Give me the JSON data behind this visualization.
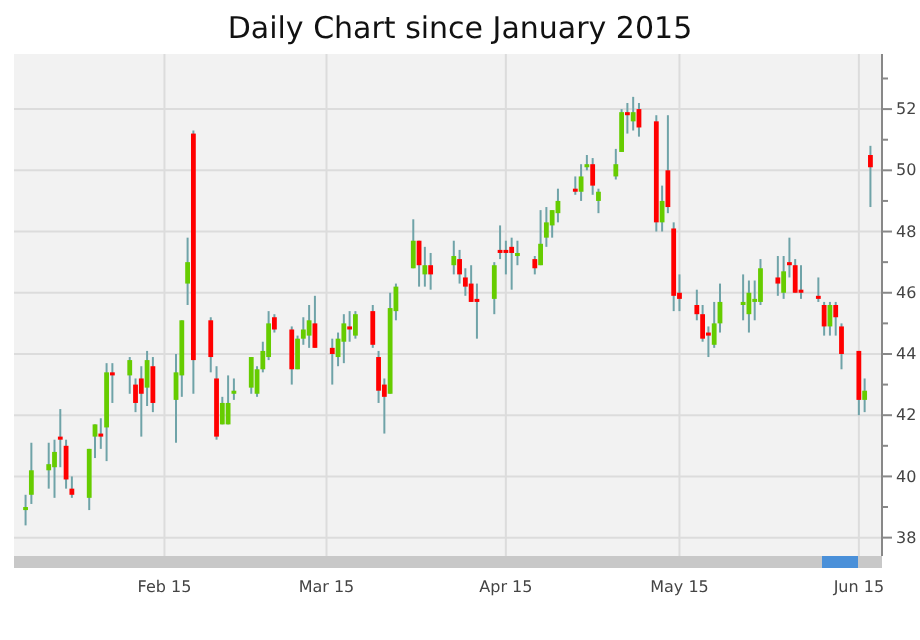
{
  "chart_data": {
    "type": "candlestick",
    "title": "Daily Chart since January 2015",
    "grid": true,
    "x": [
      "2015-01-22",
      "2015-01-23",
      "2015-01-26",
      "2015-01-27",
      "2015-01-28",
      "2015-01-29",
      "2015-01-30",
      "2015-02-02",
      "2015-02-03",
      "2015-02-04",
      "2015-02-05",
      "2015-02-06",
      "2015-02-09",
      "2015-02-10",
      "2015-02-11",
      "2015-02-12",
      "2015-02-13",
      "2015-02-17",
      "2015-02-18",
      "2015-02-19",
      "2015-02-20",
      "2015-02-23",
      "2015-02-24",
      "2015-02-25",
      "2015-02-26",
      "2015-02-27",
      "2015-03-02",
      "2015-03-03",
      "2015-03-04",
      "2015-03-05",
      "2015-03-06",
      "2015-03-09",
      "2015-03-10",
      "2015-03-11",
      "2015-03-12",
      "2015-03-13",
      "2015-03-16",
      "2015-03-17",
      "2015-03-18",
      "2015-03-19",
      "2015-03-20",
      "2015-03-23",
      "2015-03-24",
      "2015-03-25",
      "2015-03-26",
      "2015-03-27",
      "2015-03-30",
      "2015-03-31",
      "2015-04-01",
      "2015-04-02",
      "2015-04-06",
      "2015-04-07",
      "2015-04-08",
      "2015-04-09",
      "2015-04-10",
      "2015-04-13",
      "2015-04-14",
      "2015-04-15",
      "2015-04-16",
      "2015-04-17",
      "2015-04-20",
      "2015-04-21",
      "2015-04-22",
      "2015-04-23",
      "2015-04-24",
      "2015-04-27",
      "2015-04-28",
      "2015-04-29",
      "2015-04-30",
      "2015-05-01",
      "2015-05-04",
      "2015-05-05",
      "2015-05-06",
      "2015-05-07",
      "2015-05-08",
      "2015-05-11",
      "2015-05-12",
      "2015-05-13",
      "2015-05-14",
      "2015-05-15",
      "2015-05-18",
      "2015-05-19",
      "2015-05-20",
      "2015-05-21",
      "2015-05-22",
      "2015-05-26",
      "2015-05-27",
      "2015-05-28",
      "2015-05-29",
      "2015-06-01",
      "2015-06-02",
      "2015-06-03",
      "2015-06-04",
      "2015-06-05",
      "2015-06-08",
      "2015-06-09",
      "2015-06-10",
      "2015-06-11",
      "2015-06-12",
      "2015-06-15",
      "2015-06-16",
      "2015-06-17"
    ],
    "ohlc": [
      [
        38.9,
        39.4,
        38.4,
        39.0
      ],
      [
        39.4,
        41.1,
        39.1,
        40.2
      ],
      [
        40.2,
        41.1,
        39.6,
        40.4
      ],
      [
        40.3,
        41.2,
        39.3,
        40.8
      ],
      [
        41.3,
        42.2,
        40.3,
        41.2
      ],
      [
        41.0,
        41.2,
        39.6,
        39.9
      ],
      [
        39.6,
        40.0,
        39.3,
        39.4
      ],
      [
        39.3,
        40.9,
        38.9,
        40.9
      ],
      [
        41.3,
        41.7,
        40.6,
        41.7
      ],
      [
        41.4,
        41.9,
        40.9,
        41.3
      ],
      [
        41.6,
        43.7,
        40.5,
        43.4
      ],
      [
        43.4,
        43.7,
        42.4,
        43.3
      ],
      [
        43.3,
        43.9,
        42.7,
        43.8
      ],
      [
        43.0,
        43.2,
        42.1,
        42.4
      ],
      [
        43.2,
        43.6,
        41.3,
        42.7
      ],
      [
        42.9,
        44.1,
        42.3,
        43.8
      ],
      [
        43.6,
        43.9,
        42.1,
        42.4
      ],
      [
        42.5,
        44.0,
        41.1,
        43.4
      ],
      [
        43.3,
        45.1,
        42.6,
        45.1
      ],
      [
        46.3,
        47.8,
        45.6,
        47.0
      ],
      [
        51.2,
        51.3,
        42.7,
        43.8
      ],
      [
        45.1,
        45.2,
        43.4,
        43.9
      ],
      [
        43.2,
        43.6,
        41.2,
        41.3
      ],
      [
        41.7,
        42.6,
        41.7,
        42.4
      ],
      [
        41.7,
        43.3,
        41.7,
        42.4
      ],
      [
        42.7,
        43.2,
        42.5,
        42.8
      ],
      [
        42.9,
        43.9,
        42.7,
        43.9
      ],
      [
        42.7,
        43.6,
        42.6,
        43.5
      ],
      [
        43.5,
        44.4,
        43.4,
        44.1
      ],
      [
        43.9,
        45.4,
        43.8,
        45.0
      ],
      [
        45.2,
        45.3,
        44.7,
        44.8
      ],
      [
        44.8,
        44.9,
        43.0,
        43.5
      ],
      [
        43.5,
        44.6,
        43.5,
        44.5
      ],
      [
        44.5,
        45.2,
        44.3,
        44.8
      ],
      [
        44.6,
        45.6,
        44.2,
        45.1
      ],
      [
        45.0,
        45.9,
        44.2,
        44.2
      ],
      [
        44.2,
        44.5,
        43.0,
        44.0
      ],
      [
        43.9,
        44.7,
        43.6,
        44.5
      ],
      [
        44.4,
        45.3,
        43.7,
        45.0
      ],
      [
        44.9,
        45.4,
        44.4,
        44.8
      ],
      [
        44.6,
        45.4,
        44.5,
        45.3
      ],
      [
        45.4,
        45.6,
        44.2,
        44.3
      ],
      [
        43.9,
        44.1,
        42.4,
        42.8
      ],
      [
        43.0,
        43.2,
        41.4,
        42.6
      ],
      [
        42.7,
        46.0,
        42.7,
        45.5
      ],
      [
        45.4,
        46.3,
        45.1,
        46.2
      ],
      [
        46.8,
        48.4,
        46.8,
        47.7
      ],
      [
        47.7,
        47.7,
        46.2,
        46.9
      ],
      [
        46.6,
        47.5,
        46.2,
        46.9
      ],
      [
        46.9,
        47.3,
        46.1,
        46.6
      ],
      [
        46.9,
        47.7,
        46.6,
        47.2
      ],
      [
        47.1,
        47.4,
        46.3,
        46.6
      ],
      [
        46.5,
        46.8,
        45.9,
        46.2
      ],
      [
        46.3,
        46.9,
        45.7,
        45.7
      ],
      [
        45.8,
        46.3,
        44.5,
        45.7
      ],
      [
        45.8,
        47.0,
        45.3,
        46.9
      ],
      [
        47.4,
        48.2,
        47.1,
        47.3
      ],
      [
        47.4,
        47.7,
        46.6,
        47.3
      ],
      [
        47.5,
        47.8,
        46.1,
        47.3
      ],
      [
        47.2,
        47.7,
        46.9,
        47.3
      ],
      [
        47.1,
        47.2,
        46.6,
        46.8
      ],
      [
        46.9,
        48.7,
        46.9,
        47.6
      ],
      [
        47.8,
        48.8,
        47.5,
        48.3
      ],
      [
        48.2,
        48.7,
        47.8,
        48.7
      ],
      [
        48.6,
        49.4,
        48.3,
        49.0
      ],
      [
        49.4,
        49.8,
        49.2,
        49.3
      ],
      [
        49.3,
        50.2,
        49.0,
        49.8
      ],
      [
        50.1,
        50.5,
        50.0,
        50.2
      ],
      [
        50.2,
        50.4,
        49.2,
        49.5
      ],
      [
        49.0,
        49.4,
        48.6,
        49.3
      ],
      [
        49.8,
        50.7,
        49.7,
        50.2
      ],
      [
        50.6,
        52.0,
        50.6,
        51.9
      ],
      [
        51.9,
        52.2,
        51.2,
        51.8
      ],
      [
        51.6,
        52.4,
        51.3,
        51.9
      ],
      [
        52.0,
        52.2,
        51.1,
        51.4
      ],
      [
        51.6,
        51.8,
        48.0,
        48.3
      ],
      [
        48.3,
        49.5,
        48.0,
        49.0
      ],
      [
        50.0,
        51.8,
        48.6,
        48.8
      ],
      [
        48.1,
        48.3,
        45.4,
        45.9
      ],
      [
        46.0,
        46.6,
        45.4,
        45.8
      ],
      [
        45.6,
        46.1,
        45.1,
        45.3
      ],
      [
        45.3,
        45.6,
        44.4,
        44.5
      ],
      [
        44.7,
        44.9,
        43.9,
        44.6
      ],
      [
        44.3,
        45.7,
        44.2,
        45.0
      ],
      [
        45.0,
        46.3,
        44.7,
        45.7
      ],
      [
        45.6,
        46.6,
        45.1,
        45.7
      ],
      [
        45.3,
        46.4,
        44.7,
        46.0
      ],
      [
        45.7,
        46.4,
        45.1,
        45.8
      ],
      [
        45.7,
        47.1,
        45.6,
        46.8
      ],
      [
        46.5,
        47.2,
        45.9,
        46.3
      ],
      [
        46.0,
        47.2,
        45.8,
        46.7
      ],
      [
        47.0,
        47.8,
        46.5,
        46.9
      ],
      [
        46.9,
        47.1,
        46.0,
        46.0
      ],
      [
        46.1,
        46.9,
        45.8,
        46.0
      ],
      [
        45.9,
        46.5,
        45.7,
        45.8
      ],
      [
        45.6,
        45.7,
        44.6,
        44.9
      ],
      [
        44.9,
        45.7,
        44.6,
        45.6
      ],
      [
        45.6,
        45.7,
        44.6,
        45.2
      ],
      [
        44.9,
        45.0,
        43.5,
        44.0
      ],
      [
        44.1,
        44.1,
        42.0,
        42.5
      ],
      [
        42.5,
        43.2,
        42.1,
        42.8
      ],
      [
        50.5,
        50.8,
        48.8,
        50.1
      ]
    ],
    "xlim": [
      "2015-01-20",
      "2015-06-19"
    ],
    "xticks": [
      {
        "value": "2015-02-15",
        "label": "Feb 15"
      },
      {
        "value": "2015-03-15",
        "label": "Mar 15"
      },
      {
        "value": "2015-04-15",
        "label": "Apr 15"
      },
      {
        "value": "2015-05-15",
        "label": "May 15"
      },
      {
        "value": "2015-06-15",
        "label": "Jun 15"
      }
    ],
    "ylim": [
      37.4,
      53.8
    ],
    "yticks": [
      38,
      {
        "value": 39,
        "label": null
      },
      40,
      {
        "value": 41,
        "label": null
      },
      42,
      {
        "value": 43,
        "label": null
      },
      44,
      {
        "value": 45,
        "label": null
      },
      46,
      {
        "value": 47,
        "label": null
      },
      48,
      {
        "value": 49,
        "label": null
      },
      50,
      {
        "value": 51,
        "label": null
      },
      52,
      {
        "value": 53,
        "label": null
      }
    ]
  }
}
